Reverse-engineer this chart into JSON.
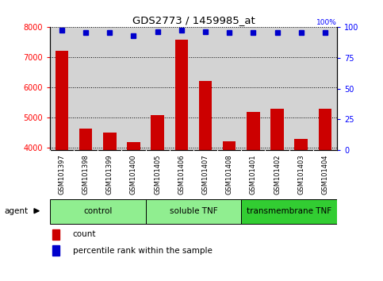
{
  "title": "GDS2773 / 1459985_at",
  "samples": [
    "GSM101397",
    "GSM101398",
    "GSM101399",
    "GSM101400",
    "GSM101405",
    "GSM101406",
    "GSM101407",
    "GSM101408",
    "GSM101401",
    "GSM101402",
    "GSM101403",
    "GSM101404"
  ],
  "counts": [
    7200,
    4620,
    4500,
    4180,
    5080,
    7560,
    6200,
    4200,
    5180,
    5280,
    4280,
    5280
  ],
  "percentile_ranks": [
    97,
    95,
    95,
    93,
    96,
    97,
    96,
    95,
    95,
    95,
    95,
    95
  ],
  "ylim_left": [
    3900,
    8000
  ],
  "ylim_right": [
    0,
    100
  ],
  "yticks_left": [
    4000,
    5000,
    6000,
    7000,
    8000
  ],
  "yticks_right": [
    0,
    25,
    50,
    75,
    100
  ],
  "bar_color": "#cc0000",
  "scatter_color": "#0000cc",
  "plot_bg_color": "#d3d3d3",
  "tick_bg_color": "#c0c0c0",
  "groups": [
    {
      "label": "control",
      "start": 0,
      "end": 4,
      "color": "#90ee90"
    },
    {
      "label": "soluble TNF",
      "start": 4,
      "end": 8,
      "color": "#90ee90"
    },
    {
      "label": "transmembrane TNF",
      "start": 8,
      "end": 12,
      "color": "#32cd32"
    }
  ],
  "agent_label": "agent",
  "legend_count_label": "count",
  "legend_pct_label": "percentile rank within the sample",
  "bar_width": 0.55
}
